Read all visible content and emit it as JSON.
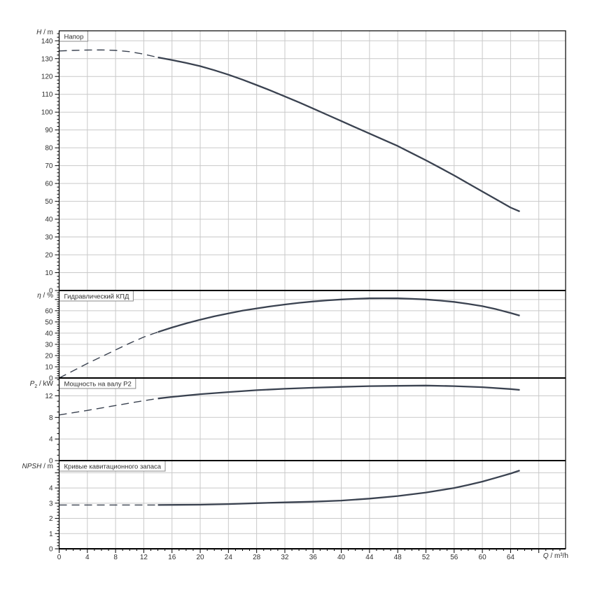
{
  "colors": {
    "background": "#ffffff",
    "curve": "#3a4250",
    "grid": "#c9c9c9",
    "axis": "#000000",
    "text": "#303030",
    "title_box_border": "#8a8a8a"
  },
  "x_axis": {
    "label_italic": "Q",
    "label_rest": " / m³/h",
    "min": 0,
    "max": 71.8,
    "major_step": 4,
    "minor_step": 1,
    "label_max": 64,
    "tick_labels": [
      "0",
      "4",
      "8",
      "12",
      "16",
      "20",
      "24",
      "28",
      "32",
      "36",
      "40",
      "44",
      "48",
      "52",
      "56",
      "60",
      "64"
    ]
  },
  "chart_data": [
    {
      "type": "line",
      "title": "Напор",
      "ylabel_italic": "H",
      "ylabel_sub": "",
      "ylabel_rest": " / m",
      "ylim": [
        0,
        145.6
      ],
      "major_step": 10,
      "minor_step": 2,
      "label_max": 140,
      "y_tick_labels": [
        "0",
        "10",
        "20",
        "30",
        "40",
        "50",
        "60",
        "70",
        "80",
        "90",
        "100",
        "110",
        "120",
        "130",
        "140"
      ],
      "series": [
        {
          "name": "head-dashed",
          "style": "dashed",
          "points": [
            [
              0,
              134.3
            ],
            [
              2,
              134.6
            ],
            [
              4,
              134.8
            ],
            [
              6,
              134.9
            ],
            [
              8,
              134.6
            ],
            [
              10,
              133.9
            ],
            [
              12,
              132.5
            ],
            [
              14,
              130.7
            ]
          ]
        },
        {
          "name": "head-solid",
          "style": "solid",
          "points": [
            [
              14,
              130.7
            ],
            [
              16,
              129.2
            ],
            [
              18,
              127.6
            ],
            [
              20,
              125.8
            ],
            [
              22,
              123.5
            ],
            [
              24,
              121.0
            ],
            [
              26,
              118.2
            ],
            [
              28,
              115.2
            ],
            [
              30,
              112.1
            ],
            [
              32,
              108.8
            ],
            [
              34,
              105.5
            ],
            [
              36,
              102.0
            ],
            [
              38,
              98.5
            ],
            [
              40,
              95.0
            ],
            [
              42,
              91.5
            ],
            [
              44,
              88.0
            ],
            [
              46,
              84.5
            ],
            [
              48,
              81.0
            ],
            [
              50,
              77.0
            ],
            [
              52,
              73.0
            ],
            [
              54,
              68.8
            ],
            [
              56,
              64.5
            ],
            [
              58,
              60.0
            ],
            [
              60,
              55.5
            ],
            [
              62,
              51.0
            ],
            [
              64,
              46.5
            ],
            [
              65.3,
              44.3
            ]
          ]
        }
      ]
    },
    {
      "type": "line",
      "title": "Гидравлический КПД",
      "ylabel_italic": "η",
      "ylabel_sub": "",
      "ylabel_rest": " / %",
      "ylim": [
        0,
        78
      ],
      "major_step": 10,
      "minor_step": 2,
      "label_max": 60,
      "y_tick_labels": [
        "0",
        "10",
        "20",
        "30",
        "40",
        "50",
        "60"
      ],
      "series": [
        {
          "name": "efficiency-dashed",
          "style": "dashed",
          "points": [
            [
              0,
              0
            ],
            [
              2,
              6.5
            ],
            [
              4,
              13
            ],
            [
              6,
              19
            ],
            [
              8,
              25
            ],
            [
              10,
              31
            ],
            [
              12,
              36.5
            ],
            [
              14,
              41
            ]
          ]
        },
        {
          "name": "efficiency-solid",
          "style": "solid",
          "points": [
            [
              14,
              41
            ],
            [
              16,
              45
            ],
            [
              18,
              48.7
            ],
            [
              20,
              52
            ],
            [
              22,
              55
            ],
            [
              24,
              57.6
            ],
            [
              26,
              60
            ],
            [
              28,
              62
            ],
            [
              30,
              63.9
            ],
            [
              32,
              65.5
            ],
            [
              34,
              67
            ],
            [
              36,
              68.2
            ],
            [
              38,
              69.2
            ],
            [
              40,
              70
            ],
            [
              42,
              70.6
            ],
            [
              44,
              71
            ],
            [
              46,
              71.1
            ],
            [
              48,
              71
            ],
            [
              50,
              70.6
            ],
            [
              52,
              70
            ],
            [
              54,
              69
            ],
            [
              56,
              67.8
            ],
            [
              58,
              66.1
            ],
            [
              60,
              64
            ],
            [
              62,
              61.3
            ],
            [
              64,
              58
            ],
            [
              65.3,
              55.6
            ]
          ]
        }
      ]
    },
    {
      "type": "line",
      "title": "Мощность на валу P2",
      "ylabel_italic": "P",
      "ylabel_sub": "2",
      "ylabel_rest": " / kW",
      "ylim": [
        0,
        15.3
      ],
      "major_step": 4,
      "minor_step": 1,
      "label_max": 12,
      "y_tick_labels": [
        "0",
        "4",
        "8",
        "12"
      ],
      "series": [
        {
          "name": "power-dashed",
          "style": "dashed",
          "points": [
            [
              0,
              8.45
            ],
            [
              4,
              9.3
            ],
            [
              8,
              10.2
            ],
            [
              12,
              11.1
            ],
            [
              14,
              11.5
            ]
          ]
        },
        {
          "name": "power-solid",
          "style": "solid",
          "points": [
            [
              14,
              11.5
            ],
            [
              16,
              11.8
            ],
            [
              20,
              12.3
            ],
            [
              24,
              12.7
            ],
            [
              28,
              13.05
            ],
            [
              32,
              13.3
            ],
            [
              36,
              13.5
            ],
            [
              40,
              13.65
            ],
            [
              44,
              13.8
            ],
            [
              48,
              13.85
            ],
            [
              52,
              13.9
            ],
            [
              56,
              13.8
            ],
            [
              60,
              13.6
            ],
            [
              64,
              13.25
            ],
            [
              65.3,
              13.1
            ]
          ]
        }
      ]
    },
    {
      "type": "line",
      "title": "Кривые кавитационного запаса",
      "ylabel_italic": "NPSH",
      "ylabel_sub": "",
      "ylabel_rest": " / m",
      "ylim": [
        0,
        5.8
      ],
      "major_step": 1,
      "minor_step": 0.2,
      "label_max": 4,
      "y_tick_labels": [
        "0",
        "1",
        "2",
        "3",
        "4"
      ],
      "series": [
        {
          "name": "npsh-dashed",
          "style": "dashed",
          "points": [
            [
              0,
              2.88
            ],
            [
              4,
              2.88
            ],
            [
              8,
              2.88
            ],
            [
              12,
              2.88
            ],
            [
              14,
              2.88
            ]
          ]
        },
        {
          "name": "npsh-solid",
          "style": "solid",
          "points": [
            [
              14,
              2.88
            ],
            [
              20,
              2.9
            ],
            [
              24,
              2.94
            ],
            [
              28,
              3.0
            ],
            [
              32,
              3.05
            ],
            [
              36,
              3.1
            ],
            [
              40,
              3.17
            ],
            [
              44,
              3.3
            ],
            [
              48,
              3.47
            ],
            [
              52,
              3.7
            ],
            [
              56,
              4.0
            ],
            [
              58,
              4.2
            ],
            [
              60,
              4.42
            ],
            [
              62,
              4.68
            ],
            [
              64,
              4.95
            ],
            [
              65.3,
              5.15
            ]
          ]
        }
      ]
    }
  ]
}
